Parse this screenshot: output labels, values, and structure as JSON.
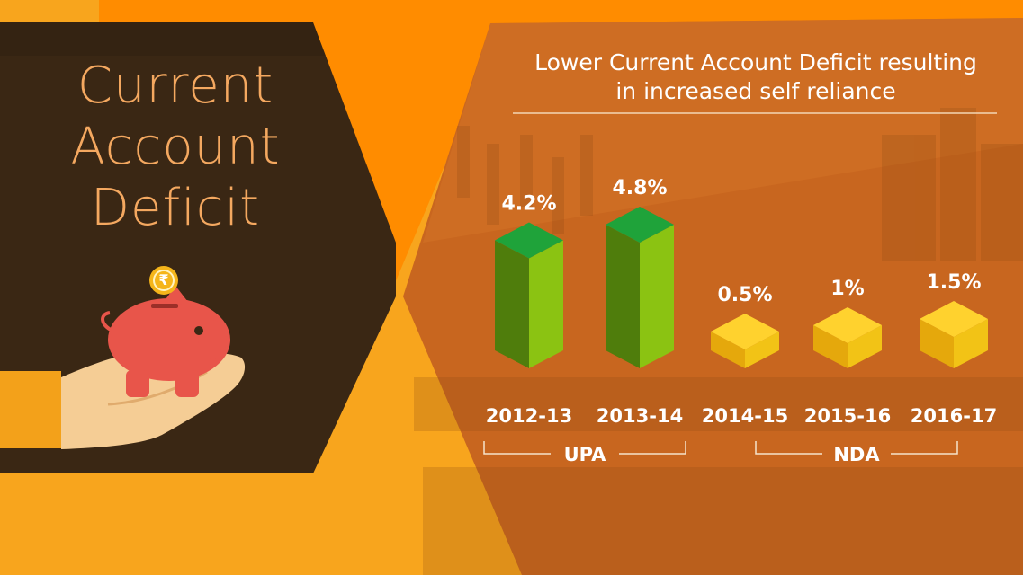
{
  "left_panel": {
    "title_lines": [
      "Current",
      "Account",
      "Deficit"
    ],
    "coin_symbol": "₹",
    "icons": [
      "piggy-bank-icon",
      "rupee-coin-icon",
      "hand-icon"
    ]
  },
  "colors": {
    "background_orange": "#f8a51d",
    "deep_orange": "#ff8c00",
    "panel_dark": "#3a2714",
    "title_text": "#f4a860",
    "piggy": "#e8554a",
    "upa_bar_front": "#8bc312",
    "upa_bar_side": "#4f7d0c",
    "upa_bar_top": "#1fa33a",
    "nda_bar_front": "#f2c316",
    "nda_bar_side": "#e5a80c",
    "nda_bar_top": "#ffd22e"
  },
  "chart_data": {
    "type": "bar",
    "title": "Lower Current Account Deficit resulting in increased self reliance",
    "title_lines": [
      "Lower Current Account Deficit resulting",
      "in increased self reliance"
    ],
    "categories": [
      "2012-13",
      "2013-14",
      "2014-15",
      "2015-16",
      "2016-17"
    ],
    "values": [
      4.2,
      4.8,
      0.5,
      1,
      1.5
    ],
    "value_labels": [
      "4.2%",
      "4.8%",
      "0.5%",
      "1%",
      "1.5%"
    ],
    "groups": [
      {
        "label": "UPA",
        "categories": [
          "2012-13",
          "2013-14"
        ]
      },
      {
        "label": "NDA",
        "categories": [
          "2014-15",
          "2015-16",
          "2016-17"
        ]
      }
    ],
    "xlabel": "",
    "ylabel": "",
    "grid": false,
    "legend": "none"
  }
}
